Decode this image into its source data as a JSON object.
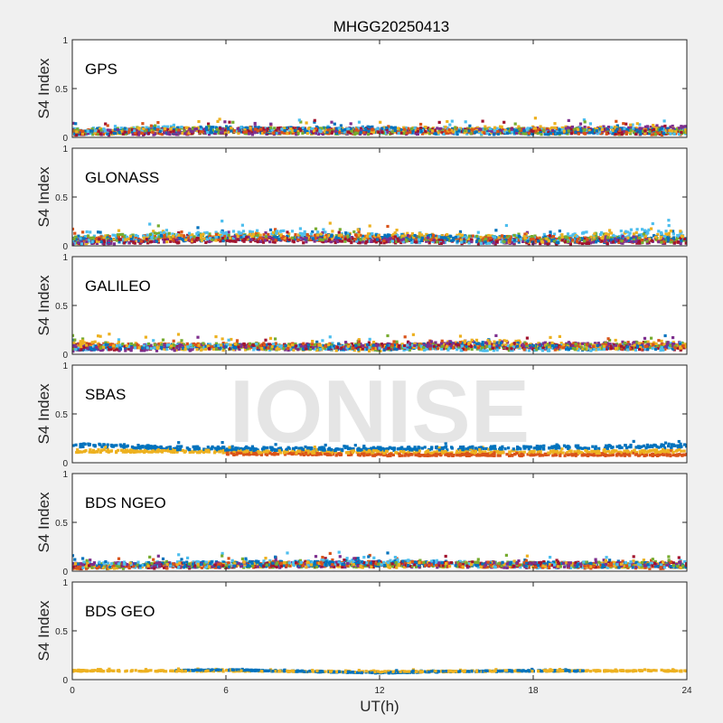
{
  "figure": {
    "title": "MHGG20250413",
    "watermark": "IONISE",
    "xlabel": "UT(h)",
    "ylabel": "S4 Index",
    "xlim": [
      0,
      24
    ],
    "ylim": [
      0,
      1
    ],
    "xticks": [
      0,
      6,
      12,
      18,
      24
    ],
    "xtick_labels": [
      "0",
      "6",
      "12",
      "18",
      "24"
    ],
    "yticks": [
      0,
      0.5,
      1
    ],
    "ytick_labels": [
      "0",
      "0.5",
      "1"
    ]
  },
  "colors": {
    "blue": "#0072BD",
    "orange": "#D95319",
    "yellow": "#EDB120",
    "purple": "#7E2F8E",
    "green": "#77AC30",
    "cyan": "#4DBEEE",
    "darkred": "#A2142F",
    "background": "#f0f0f0",
    "axes_background": "#ffffff",
    "watermark": "#d0d0d0"
  },
  "chart_data": [
    {
      "type": "scatter",
      "panel": "GPS",
      "xlim": [
        0,
        24
      ],
      "ylim": [
        0,
        1
      ],
      "series": [
        {
          "color": "#0072BD",
          "base": [
            [
              0,
              0.06
            ],
            [
              3,
              0.07
            ],
            [
              6,
              0.08
            ],
            [
              9,
              0.07
            ],
            [
              12,
              0.08
            ],
            [
              15,
              0.06
            ],
            [
              18,
              0.06
            ],
            [
              21,
              0.07
            ],
            [
              24,
              0.06
            ]
          ],
          "points": 380,
          "spread": 0.045
        },
        {
          "color": "#D95319",
          "base": [
            [
              0,
              0.05
            ],
            [
              4,
              0.06
            ],
            [
              8,
              0.07
            ],
            [
              12,
              0.06
            ],
            [
              16,
              0.07
            ],
            [
              20,
              0.06
            ],
            [
              24,
              0.05
            ]
          ],
          "points": 300,
          "spread": 0.04
        },
        {
          "color": "#EDB120",
          "base": [
            [
              0,
              0.06
            ],
            [
              5,
              0.07
            ],
            [
              10,
              0.06
            ],
            [
              15,
              0.08
            ],
            [
              20,
              0.08
            ],
            [
              24,
              0.07
            ]
          ],
          "points": 300,
          "spread": 0.045
        },
        {
          "color": "#7E2F8E",
          "base": [
            [
              0,
              0.05
            ],
            [
              6,
              0.06
            ],
            [
              12,
              0.06
            ],
            [
              18,
              0.07
            ],
            [
              24,
              0.09
            ]
          ],
          "points": 280,
          "spread": 0.045
        },
        {
          "color": "#77AC30",
          "base": [
            [
              0,
              0.06
            ],
            [
              6,
              0.07
            ],
            [
              12,
              0.06
            ],
            [
              18,
              0.06
            ],
            [
              24,
              0.06
            ]
          ],
          "points": 260,
          "spread": 0.045
        },
        {
          "color": "#4DBEEE",
          "base": [
            [
              0,
              0.06
            ],
            [
              4,
              0.08
            ],
            [
              8,
              0.07
            ],
            [
              12,
              0.07
            ],
            [
              16,
              0.06
            ],
            [
              20,
              0.07
            ],
            [
              24,
              0.06
            ]
          ],
          "points": 300,
          "spread": 0.045
        },
        {
          "color": "#A2142F",
          "base": [
            [
              0,
              0.05
            ],
            [
              6,
              0.07
            ],
            [
              12,
              0.07
            ],
            [
              18,
              0.07
            ],
            [
              24,
              0.05
            ]
          ],
          "points": 280,
          "spread": 0.04
        }
      ]
    },
    {
      "type": "scatter",
      "panel": "GLONASS",
      "xlim": [
        0,
        24
      ],
      "ylim": [
        0,
        1
      ],
      "series": [
        {
          "color": "#0072BD",
          "base": [
            [
              0,
              0.05
            ],
            [
              4,
              0.08
            ],
            [
              8,
              0.08
            ],
            [
              12,
              0.09
            ],
            [
              16,
              0.07
            ],
            [
              20,
              0.06
            ],
            [
              24,
              0.08
            ]
          ],
          "points": 330,
          "spread": 0.045
        },
        {
          "color": "#D95319",
          "base": [
            [
              0,
              0.06
            ],
            [
              6,
              0.09
            ],
            [
              12,
              0.08
            ],
            [
              18,
              0.07
            ],
            [
              24,
              0.06
            ]
          ],
          "points": 280,
          "spread": 0.045
        },
        {
          "color": "#EDB120",
          "base": [
            [
              0,
              0.05
            ],
            [
              6,
              0.09
            ],
            [
              12,
              0.1
            ],
            [
              15,
              0.09
            ],
            [
              18,
              0.06
            ],
            [
              22,
              0.11
            ],
            [
              24,
              0.09
            ]
          ],
          "points": 300,
          "spread": 0.05
        },
        {
          "color": "#7E2F8E",
          "base": [
            [
              0,
              0.04
            ],
            [
              6,
              0.07
            ],
            [
              12,
              0.06
            ],
            [
              18,
              0.05
            ],
            [
              24,
              0.05
            ]
          ],
          "points": 280,
          "spread": 0.04
        },
        {
          "color": "#77AC30",
          "base": [
            [
              0,
              0.06
            ],
            [
              3,
              0.1
            ],
            [
              6,
              0.09
            ],
            [
              12,
              0.07
            ],
            [
              18,
              0.07
            ],
            [
              24,
              0.06
            ]
          ],
          "points": 260,
          "spread": 0.045
        },
        {
          "color": "#4DBEEE",
          "base": [
            [
              0,
              0.05
            ],
            [
              4,
              0.1
            ],
            [
              8,
              0.12
            ],
            [
              12,
              0.08
            ],
            [
              16,
              0.06
            ],
            [
              20,
              0.1
            ],
            [
              23,
              0.14
            ],
            [
              24,
              0.11
            ]
          ],
          "points": 320,
          "spread": 0.06
        },
        {
          "color": "#A2142F",
          "base": [
            [
              0,
              0.04
            ],
            [
              6,
              0.06
            ],
            [
              12,
              0.05
            ],
            [
              18,
              0.04
            ],
            [
              24,
              0.05
            ]
          ],
          "points": 280,
          "spread": 0.035
        }
      ]
    },
    {
      "type": "scatter",
      "panel": "GALILEO",
      "xlim": [
        0,
        24
      ],
      "ylim": [
        0,
        1
      ],
      "series": [
        {
          "color": "#0072BD",
          "base": [
            [
              0,
              0.07
            ],
            [
              6,
              0.08
            ],
            [
              12,
              0.07
            ],
            [
              16,
              0.1
            ],
            [
              20,
              0.07
            ],
            [
              24,
              0.08
            ]
          ],
          "points": 300,
          "spread": 0.04
        },
        {
          "color": "#D95319",
          "base": [
            [
              0,
              0.08
            ],
            [
              6,
              0.09
            ],
            [
              12,
              0.08
            ],
            [
              18,
              0.07
            ],
            [
              24,
              0.08
            ]
          ],
          "points": 260,
          "spread": 0.04
        },
        {
          "color": "#EDB120",
          "base": [
            [
              0,
              0.1
            ],
            [
              4,
              0.08
            ],
            [
              8,
              0.07
            ],
            [
              12,
              0.06
            ],
            [
              16,
              0.12
            ],
            [
              20,
              0.07
            ],
            [
              24,
              0.09
            ]
          ],
          "points": 320,
          "spread": 0.05
        },
        {
          "color": "#7E2F8E",
          "base": [
            [
              0,
              0.06
            ],
            [
              6,
              0.07
            ],
            [
              12,
              0.08
            ],
            [
              15,
              0.11
            ],
            [
              18,
              0.09
            ],
            [
              24,
              0.1
            ]
          ],
          "points": 300,
          "spread": 0.045
        },
        {
          "color": "#77AC30",
          "base": [
            [
              0,
              0.08
            ],
            [
              6,
              0.08
            ],
            [
              12,
              0.07
            ],
            [
              18,
              0.07
            ],
            [
              24,
              0.11
            ]
          ],
          "points": 240,
          "spread": 0.045
        },
        {
          "color": "#4DBEEE",
          "base": [
            [
              0,
              0.07
            ],
            [
              4,
              0.08
            ],
            [
              8,
              0.07
            ],
            [
              12,
              0.07
            ],
            [
              18,
              0.06
            ],
            [
              24,
              0.07
            ]
          ],
          "points": 260,
          "spread": 0.04
        },
        {
          "color": "#A2142F",
          "base": [
            [
              0,
              0.07
            ],
            [
              6,
              0.08
            ],
            [
              12,
              0.08
            ],
            [
              18,
              0.08
            ],
            [
              24,
              0.07
            ]
          ],
          "points": 260,
          "spread": 0.04
        }
      ]
    },
    {
      "type": "scatter",
      "panel": "SBAS",
      "xlim": [
        0,
        24
      ],
      "ylim": [
        0,
        1
      ],
      "series": [
        {
          "color": "#0072BD",
          "base": [
            [
              0,
              0.18
            ],
            [
              2,
              0.17
            ],
            [
              4,
              0.15
            ],
            [
              8,
              0.14
            ],
            [
              12,
              0.14
            ],
            [
              16,
              0.15
            ],
            [
              20,
              0.16
            ],
            [
              24,
              0.17
            ]
          ],
          "points": 520,
          "spread": 0.025
        },
        {
          "color": "#EDB120",
          "base": [
            [
              0,
              0.12
            ],
            [
              4,
              0.12
            ],
            [
              8,
              0.11
            ],
            [
              12,
              0.11
            ],
            [
              16,
              0.11
            ],
            [
              20,
              0.11
            ],
            [
              24,
              0.12
            ]
          ],
          "points": 520,
          "spread": 0.02
        },
        {
          "color": "#D95319",
          "base": [
            [
              6,
              0.09
            ],
            [
              9,
              0.09
            ],
            [
              12,
              0.08
            ],
            [
              16,
              0.08
            ],
            [
              20,
              0.08
            ],
            [
              24,
              0.08
            ]
          ],
          "points": 420,
          "spread": 0.015
        }
      ]
    },
    {
      "type": "scatter",
      "panel": "BDS NGEO",
      "xlim": [
        0,
        24
      ],
      "ylim": [
        0,
        1
      ],
      "series": [
        {
          "color": "#0072BD",
          "base": [
            [
              0,
              0.06
            ],
            [
              6,
              0.07
            ],
            [
              12,
              0.08
            ],
            [
              18,
              0.07
            ],
            [
              24,
              0.06
            ]
          ],
          "points": 320,
          "spread": 0.04
        },
        {
          "color": "#D95319",
          "base": [
            [
              0,
              0.05
            ],
            [
              6,
              0.06
            ],
            [
              12,
              0.08
            ],
            [
              18,
              0.06
            ],
            [
              24,
              0.05
            ]
          ],
          "points": 280,
          "spread": 0.04
        },
        {
          "color": "#EDB120",
          "base": [
            [
              0,
              0.05
            ],
            [
              6,
              0.07
            ],
            [
              12,
              0.06
            ],
            [
              18,
              0.07
            ],
            [
              24,
              0.06
            ]
          ],
          "points": 260,
          "spread": 0.04
        },
        {
          "color": "#7E2F8E",
          "base": [
            [
              0,
              0.06
            ],
            [
              6,
              0.06
            ],
            [
              12,
              0.07
            ],
            [
              18,
              0.06
            ],
            [
              24,
              0.07
            ]
          ],
          "points": 280,
          "spread": 0.04
        },
        {
          "color": "#77AC30",
          "base": [
            [
              0,
              0.05
            ],
            [
              6,
              0.06
            ],
            [
              12,
              0.07
            ],
            [
              18,
              0.07
            ],
            [
              24,
              0.06
            ]
          ],
          "points": 260,
          "spread": 0.04
        },
        {
          "color": "#4DBEEE",
          "base": [
            [
              0,
              0.06
            ],
            [
              6,
              0.07
            ],
            [
              12,
              0.09
            ],
            [
              18,
              0.06
            ],
            [
              24,
              0.07
            ]
          ],
          "points": 280,
          "spread": 0.045
        },
        {
          "color": "#A2142F",
          "base": [
            [
              0,
              0.05
            ],
            [
              6,
              0.06
            ],
            [
              12,
              0.07
            ],
            [
              18,
              0.07
            ],
            [
              24,
              0.06
            ]
          ],
          "points": 260,
          "spread": 0.04
        }
      ]
    },
    {
      "type": "scatter",
      "panel": "BDS GEO",
      "xlim": [
        0,
        24
      ],
      "ylim": [
        0,
        1
      ],
      "series": [
        {
          "color": "#0072BD",
          "base": [
            [
              4,
              0.09
            ],
            [
              6,
              0.1
            ],
            [
              8,
              0.09
            ],
            [
              10,
              0.08
            ],
            [
              12,
              0.07
            ],
            [
              14,
              0.08
            ],
            [
              18,
              0.09
            ],
            [
              20,
              0.09
            ]
          ],
          "points": 320,
          "spread": 0.008
        },
        {
          "color": "#EDB120",
          "base": [
            [
              0,
              0.09
            ],
            [
              6,
              0.09
            ],
            [
              12,
              0.08
            ],
            [
              18,
              0.09
            ],
            [
              24,
              0.09
            ]
          ],
          "points": 480,
          "spread": 0.008
        }
      ]
    }
  ]
}
